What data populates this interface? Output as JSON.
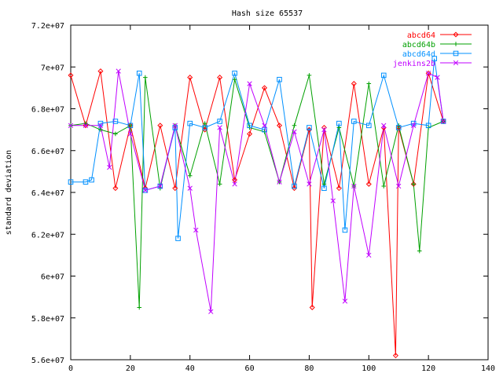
{
  "chart_data": {
    "type": "line",
    "title": "Hash size 65537",
    "xlabel": "",
    "ylabel": "standard deviation",
    "xlim": [
      0,
      140
    ],
    "ylim": [
      56000000,
      72000000
    ],
    "x_ticks": [
      0,
      20,
      40,
      60,
      80,
      100,
      120,
      140
    ],
    "x_tick_labels": [
      "0",
      "20",
      "40",
      "60",
      "80",
      "100",
      "120",
      "140"
    ],
    "y_ticks": [
      56000000,
      58000000,
      60000000,
      62000000,
      64000000,
      66000000,
      68000000,
      70000000,
      72000000
    ],
    "y_tick_labels": [
      "5.6e+07",
      "5.8e+07",
      "6e+07",
      "6.2e+07",
      "6.4e+07",
      "6.6e+07",
      "6.8e+07",
      "7e+07",
      "7.2e+07"
    ],
    "grid": false,
    "legend_position": "top-right",
    "series": [
      {
        "name": "abcd64",
        "color": "#ff0000",
        "marker": "diamond",
        "x": [
          0,
          5,
          10,
          15,
          20,
          25,
          30,
          35,
          40,
          45,
          50,
          55,
          60,
          65,
          70,
          75,
          80,
          81,
          85,
          90,
          95,
          100,
          105,
          109,
          110,
          115,
          120,
          125
        ],
        "values": [
          69600000,
          67200000,
          69800000,
          64200000,
          67200000,
          64200000,
          67200000,
          64200000,
          69500000,
          67000000,
          69500000,
          64600000,
          66800000,
          69000000,
          67200000,
          64200000,
          67000000,
          58500000,
          67100000,
          64200000,
          69200000,
          64400000,
          67100000,
          56200000,
          67100000,
          64400000,
          69700000,
          67400000
        ]
      },
      {
        "name": "abcd64b",
        "color": "#00a000",
        "marker": "plus",
        "x": [
          0,
          5,
          10,
          15,
          20,
          23,
          25,
          30,
          35,
          40,
          45,
          50,
          55,
          60,
          65,
          70,
          75,
          80,
          85,
          90,
          95,
          100,
          105,
          110,
          115,
          117,
          120,
          125
        ],
        "values": [
          67200000,
          67300000,
          67000000,
          66800000,
          67200000,
          58500000,
          69500000,
          64200000,
          67200000,
          64800000,
          67300000,
          64400000,
          69400000,
          67100000,
          66900000,
          64500000,
          67200000,
          69600000,
          64400000,
          67100000,
          64300000,
          69200000,
          64300000,
          67200000,
          64400000,
          61200000,
          67100000,
          67400000
        ]
      },
      {
        "name": "abcd64d",
        "color": "#0090ff",
        "marker": "square",
        "x": [
          0,
          5,
          7,
          10,
          15,
          20,
          23,
          25,
          30,
          35,
          36,
          40,
          45,
          50,
          55,
          60,
          65,
          70,
          75,
          80,
          85,
          90,
          92,
          95,
          100,
          105,
          110,
          115,
          120,
          122,
          125
        ],
        "values": [
          64500000,
          64500000,
          64600000,
          67300000,
          67400000,
          67200000,
          69700000,
          64100000,
          64300000,
          67100000,
          61800000,
          67300000,
          67100000,
          67400000,
          69700000,
          67200000,
          67000000,
          69400000,
          64300000,
          67100000,
          64200000,
          67300000,
          62200000,
          67400000,
          67200000,
          69600000,
          67100000,
          67300000,
          67200000,
          70400000,
          67400000
        ]
      },
      {
        "name": "jenkins2b",
        "color": "#c000ff",
        "marker": "cross",
        "x": [
          0,
          5,
          10,
          13,
          16,
          20,
          25,
          30,
          35,
          40,
          42,
          47,
          50,
          55,
          60,
          65,
          70,
          75,
          80,
          85,
          88,
          92,
          95,
          100,
          105,
          110,
          115,
          120,
          123,
          125
        ],
        "values": [
          67200000,
          67200000,
          67200000,
          65200000,
          69800000,
          66800000,
          64100000,
          64300000,
          67200000,
          64200000,
          62200000,
          58300000,
          67100000,
          64400000,
          69200000,
          67200000,
          64500000,
          66900000,
          64400000,
          67000000,
          63600000,
          58800000,
          64300000,
          61000000,
          67200000,
          64300000,
          67200000,
          69700000,
          69500000,
          67400000
        ]
      }
    ]
  }
}
